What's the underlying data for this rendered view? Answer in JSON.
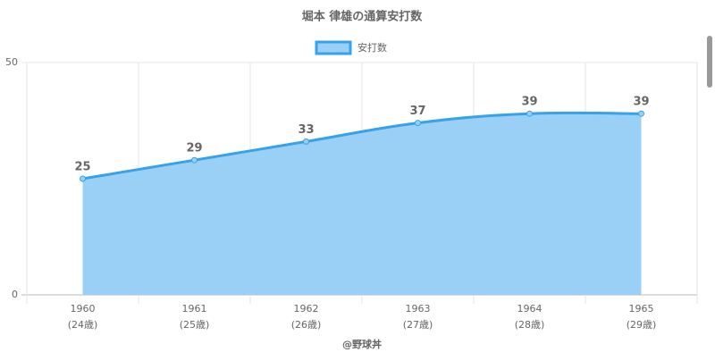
{
  "chart_data": {
    "type": "area",
    "title": "堀本 律雄の通算安打数",
    "categories": [
      "1960",
      "1961",
      "1962",
      "1963",
      "1964",
      "1965"
    ],
    "category_sublabels": [
      "(24歳)",
      "(25歳)",
      "(26歳)",
      "(27歳)",
      "(28歳)",
      "(29歳)"
    ],
    "series": [
      {
        "name": "安打数",
        "color": "#36a2eb",
        "fill": "#9ad0f5",
        "values": [
          25,
          29,
          33,
          37,
          39,
          39
        ]
      }
    ],
    "ylim": [
      0,
      50
    ],
    "yticks": [
      0,
      50
    ],
    "grid": true,
    "legend": "top",
    "credit": "@野球丼"
  }
}
